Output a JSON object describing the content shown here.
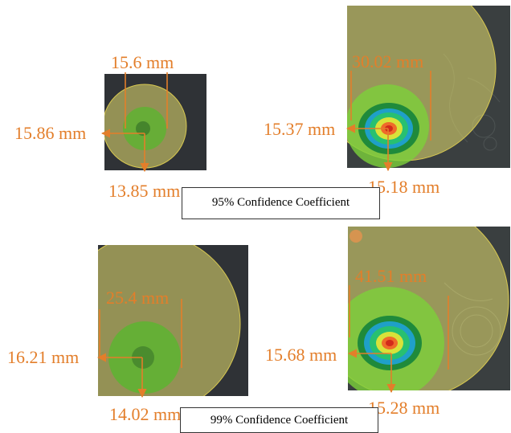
{
  "figure": {
    "groups": [
      {
        "caption": "95% Confidence Coefficient",
        "panels": [
          {
            "panel": "left",
            "measurements": [
              "15.6 mm",
              "15.86 mm",
              "13.85 mm"
            ]
          },
          {
            "panel": "right",
            "measurements": [
              "30.02 mm",
              "15.37 mm",
              "15.18 mm"
            ]
          }
        ]
      },
      {
        "caption": "99% Confidence Coefficient",
        "panels": [
          {
            "panel": "left",
            "measurements": [
              "25.4 mm",
              "16.21 mm",
              "14.02 mm"
            ]
          },
          {
            "panel": "right",
            "measurements": [
              "41.51 mm",
              "15.68 mm",
              "15.28 mm"
            ]
          }
        ]
      }
    ],
    "colors": {
      "annotation": "#e37e2a",
      "outer_circle": "#e8e070",
      "inner_circle": "#7cd13a",
      "background_dark": "#2b2f33"
    }
  }
}
